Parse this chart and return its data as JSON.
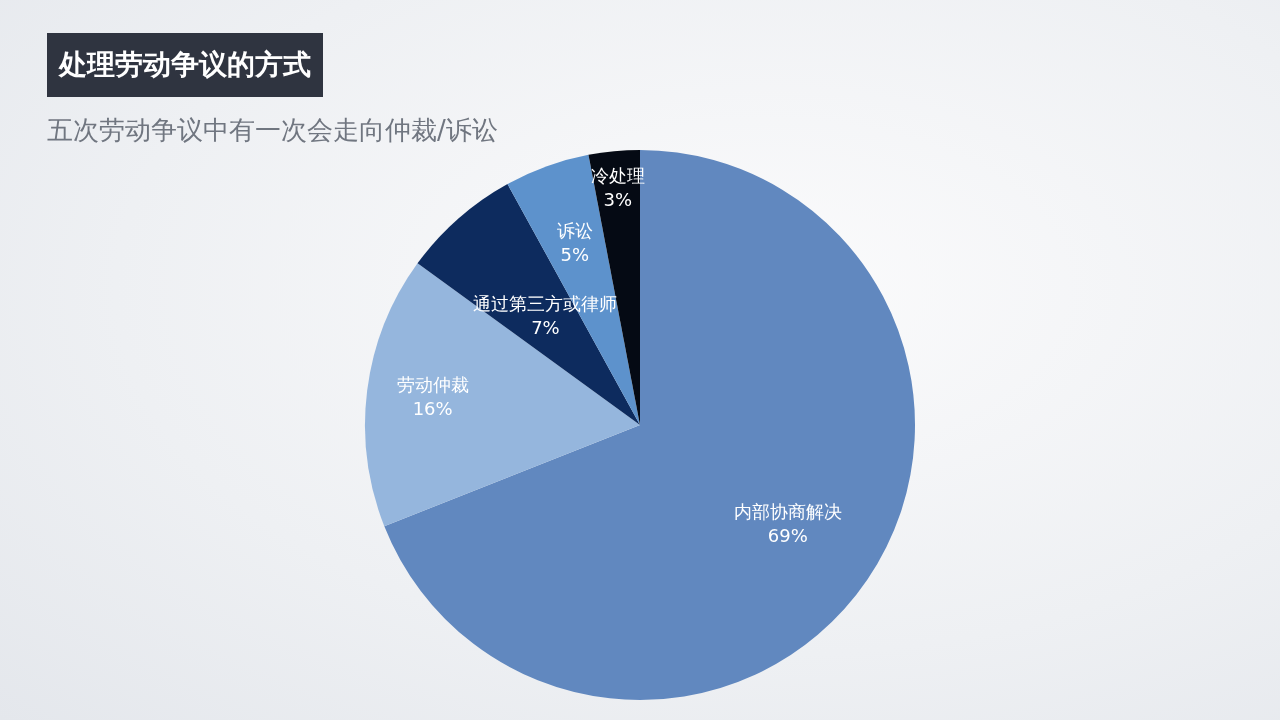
{
  "chart_data": {
    "type": "pie",
    "title": "处理劳动争议的方式",
    "subtitle": "五次劳动争议中有一次会走向仲裁/诉讼",
    "categories": [
      "内部协商解决",
      "劳动仲裁",
      "通过第三方或律师",
      "诉讼",
      "冷处理"
    ],
    "values": [
      69,
      16,
      7,
      5,
      3
    ],
    "colors": [
      "#6188bf",
      "#95b6dd",
      "#0d2b5e",
      "#5d92cc",
      "#050a14"
    ],
    "value_labels": [
      "69%",
      "16%",
      "7%",
      "5%",
      "3%"
    ],
    "legend": false
  }
}
